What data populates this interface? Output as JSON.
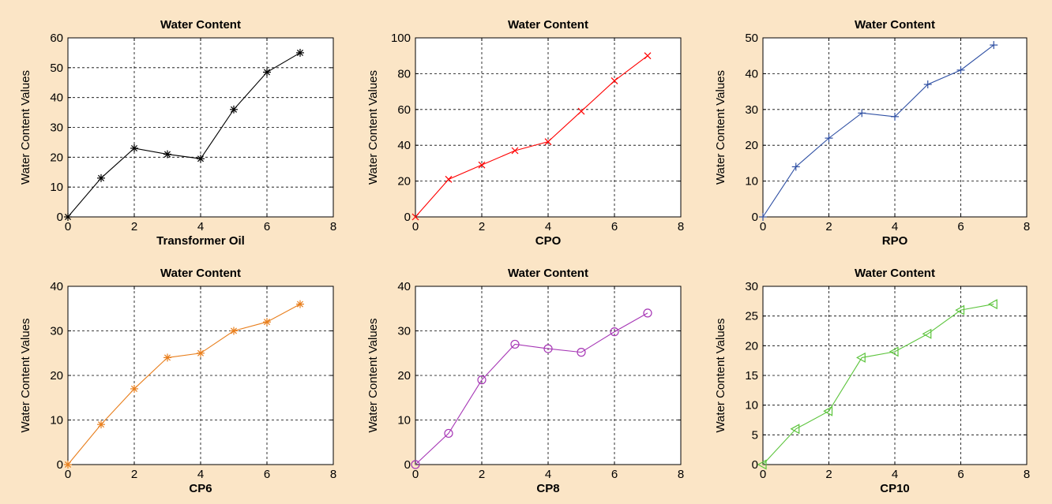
{
  "chart_data": [
    {
      "type": "line",
      "title": "Water Content",
      "xlabel": "Transformer Oil",
      "ylabel": "Water Content Values",
      "xlim": [
        0,
        8
      ],
      "ylim": [
        0,
        60
      ],
      "xticks": [
        0,
        2,
        4,
        6,
        8
      ],
      "yticks": [
        0,
        10,
        20,
        30,
        40,
        50,
        60
      ],
      "grid": true,
      "series": [
        {
          "color": "#000000",
          "marker": "asterisk",
          "x": [
            0,
            1,
            2,
            3,
            4,
            5,
            6,
            7
          ],
          "y": [
            0,
            13,
            23,
            21,
            19.5,
            36,
            48.5,
            55
          ]
        }
      ]
    },
    {
      "type": "line",
      "title": "Water Content",
      "xlabel": "CPO",
      "ylabel": "Water Content Values",
      "xlim": [
        0,
        8
      ],
      "ylim": [
        0,
        100
      ],
      "xticks": [
        0,
        2,
        4,
        6,
        8
      ],
      "yticks": [
        0,
        20,
        40,
        60,
        80,
        100
      ],
      "grid": true,
      "series": [
        {
          "color": "#ff0000",
          "marker": "x",
          "x": [
            0,
            1,
            2,
            3,
            4,
            5,
            6,
            7
          ],
          "y": [
            0,
            21,
            29,
            37,
            42,
            59,
            76,
            90
          ]
        }
      ]
    },
    {
      "type": "line",
      "title": "Water Content",
      "xlabel": "RPO",
      "ylabel": "Water Content Values",
      "xlim": [
        0,
        8
      ],
      "ylim": [
        0,
        50
      ],
      "xticks": [
        0,
        2,
        4,
        6,
        8
      ],
      "yticks": [
        0,
        10,
        20,
        30,
        40,
        50
      ],
      "grid": true,
      "series": [
        {
          "color": "#2e4fa3",
          "marker": "plus",
          "x": [
            0,
            1,
            2,
            3,
            4,
            5,
            6,
            7
          ],
          "y": [
            0,
            14,
            22,
            29,
            28,
            37,
            41,
            48
          ]
        }
      ]
    },
    {
      "type": "line",
      "title": "Water Content",
      "xlabel": "CP6",
      "ylabel": "Water Content Values",
      "xlim": [
        0,
        8
      ],
      "ylim": [
        0,
        40
      ],
      "xticks": [
        0,
        2,
        4,
        6,
        8
      ],
      "yticks": [
        0,
        10,
        20,
        30,
        40
      ],
      "grid": true,
      "series": [
        {
          "color": "#e87e1c",
          "marker": "asterisk",
          "x": [
            0,
            1,
            2,
            3,
            4,
            5,
            6,
            7
          ],
          "y": [
            0,
            9,
            17,
            24,
            25,
            30,
            32,
            36
          ]
        }
      ]
    },
    {
      "type": "line",
      "title": "Water Content",
      "xlabel": "CP8",
      "ylabel": "Water Content Values",
      "xlim": [
        0,
        8
      ],
      "ylim": [
        0,
        40
      ],
      "xticks": [
        0,
        2,
        4,
        6,
        8
      ],
      "yticks": [
        0,
        10,
        20,
        30,
        40
      ],
      "grid": true,
      "series": [
        {
          "color": "#a636b5",
          "marker": "circle",
          "x": [
            0,
            1,
            2,
            3,
            4,
            5,
            6,
            7
          ],
          "y": [
            0,
            7,
            19,
            27,
            26,
            25.2,
            29.8,
            34
          ]
        }
      ]
    },
    {
      "type": "line",
      "title": "Water Content",
      "xlabel": "CP10",
      "ylabel": "Water Content Values",
      "xlim": [
        0,
        8
      ],
      "ylim": [
        0,
        30
      ],
      "xticks": [
        0,
        2,
        4,
        6,
        8
      ],
      "yticks": [
        0,
        5,
        10,
        15,
        20,
        25,
        30
      ],
      "grid": true,
      "series": [
        {
          "color": "#5cc43c",
          "marker": "triangle-left",
          "x": [
            0,
            1,
            2,
            3,
            4,
            5,
            6,
            7
          ],
          "y": [
            0,
            6,
            9,
            18,
            19,
            22,
            26,
            27
          ]
        }
      ]
    }
  ]
}
